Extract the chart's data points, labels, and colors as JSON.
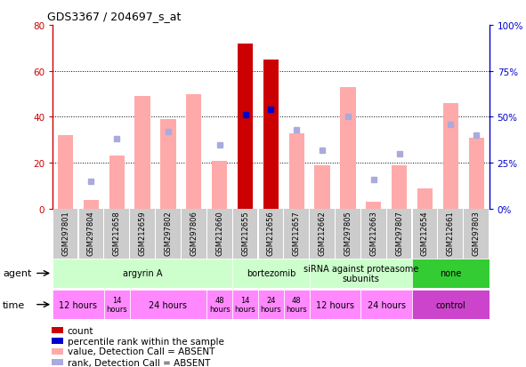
{
  "title": "GDS3367 / 204697_s_at",
  "samples": [
    "GSM297801",
    "GSM297804",
    "GSM212658",
    "GSM212659",
    "GSM297802",
    "GSM297806",
    "GSM212660",
    "GSM212655",
    "GSM212656",
    "GSM212657",
    "GSM212662",
    "GSM297805",
    "GSM212663",
    "GSM297807",
    "GSM212654",
    "GSM212661",
    "GSM297803"
  ],
  "bar_values": [
    32,
    4,
    23,
    49,
    39,
    50,
    21,
    72,
    65,
    33,
    19,
    53,
    3,
    19,
    9,
    46,
    31
  ],
  "bar_colors": [
    "#ffaaaa",
    "#ffaaaa",
    "#ffaaaa",
    "#ffaaaa",
    "#ffaaaa",
    "#ffaaaa",
    "#ffaaaa",
    "#cc0000",
    "#cc0000",
    "#ffaaaa",
    "#ffaaaa",
    "#ffaaaa",
    "#ffaaaa",
    "#ffaaaa",
    "#ffaaaa",
    "#ffaaaa",
    "#ffaaaa"
  ],
  "rank_values": [
    null,
    15,
    38,
    null,
    42,
    null,
    35,
    51,
    54,
    43,
    32,
    50,
    16,
    30,
    null,
    46,
    40
  ],
  "rank_is_absent": [
    true,
    true,
    true,
    true,
    true,
    true,
    true,
    false,
    false,
    true,
    true,
    true,
    true,
    true,
    true,
    true,
    true
  ],
  "ylim_left": [
    0,
    80
  ],
  "ylim_right": [
    0,
    100
  ],
  "yticks_left": [
    0,
    20,
    40,
    60,
    80
  ],
  "ytick_labels_right": [
    "0%",
    "25%",
    "50%",
    "75%",
    "100%"
  ],
  "agent_groups": [
    {
      "label": "argyrin A",
      "start": 0,
      "end": 7
    },
    {
      "label": "bortezomib",
      "start": 7,
      "end": 10
    },
    {
      "label": "siRNA against proteasome\nsubunits",
      "start": 10,
      "end": 14
    },
    {
      "label": "none",
      "start": 14,
      "end": 17
    }
  ],
  "time_groups": [
    {
      "label": "12 hours",
      "start": 0,
      "end": 2
    },
    {
      "label": "14\nhours",
      "start": 2,
      "end": 3
    },
    {
      "label": "24 hours",
      "start": 3,
      "end": 6
    },
    {
      "label": "48\nhours",
      "start": 6,
      "end": 7
    },
    {
      "label": "14\nhours",
      "start": 7,
      "end": 8
    },
    {
      "label": "24\nhours",
      "start": 8,
      "end": 9
    },
    {
      "label": "48\nhours",
      "start": 9,
      "end": 10
    },
    {
      "label": "12 hours",
      "start": 10,
      "end": 12
    },
    {
      "label": "24 hours",
      "start": 12,
      "end": 14
    },
    {
      "label": "control",
      "start": 14,
      "end": 17
    }
  ],
  "legend_items": [
    {
      "label": "count",
      "color": "#cc0000"
    },
    {
      "label": "percentile rank within the sample",
      "color": "#0000cc"
    },
    {
      "label": "value, Detection Call = ABSENT",
      "color": "#ffaaaa"
    },
    {
      "label": "rank, Detection Call = ABSENT",
      "color": "#aaaadd"
    }
  ],
  "left_axis_color": "#cc0000",
  "right_axis_color": "#0000cc",
  "agent_light_color": "#ccffcc",
  "agent_dark_color": "#33cc33",
  "time_light_color": "#ff88ff",
  "time_dark_color": "#cc44cc"
}
